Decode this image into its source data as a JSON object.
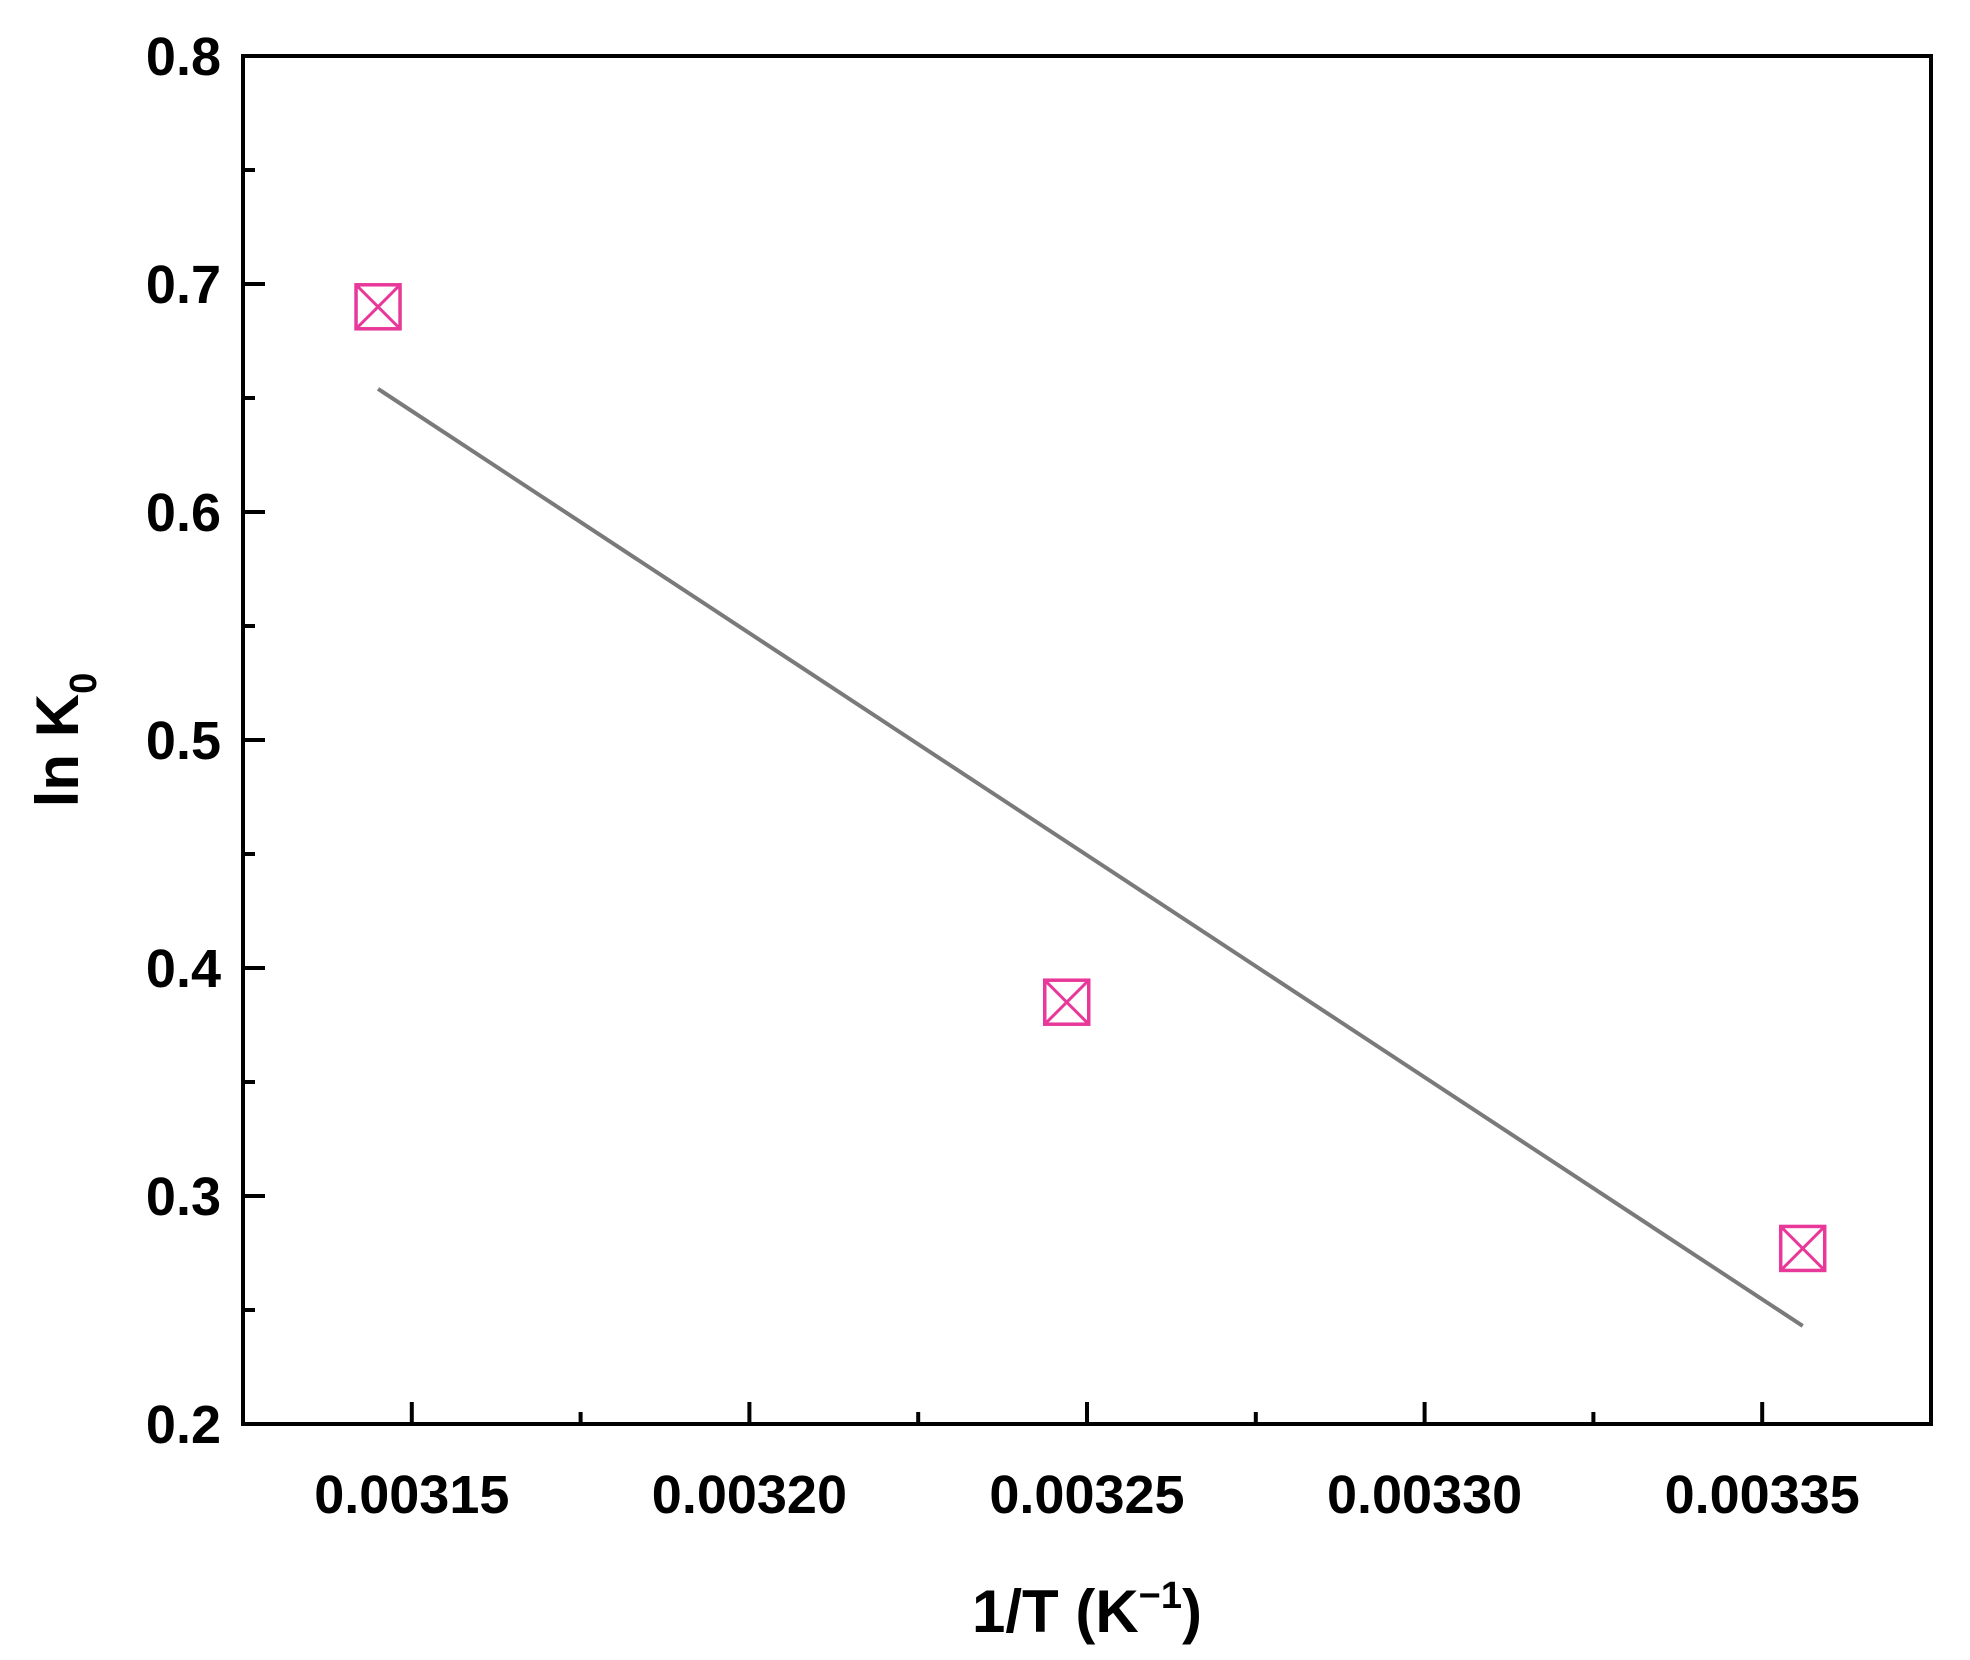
{
  "chart_data": {
    "type": "scatter",
    "xlabel": {
      "main": "1/T (K",
      "sup": "−1",
      "close": ")"
    },
    "ylabel": {
      "main": "ln K",
      "sub": "0"
    },
    "xlim": [
      0.003125,
      0.003375
    ],
    "ylim": [
      0.2,
      0.8
    ],
    "x_ticks": [
      0.00315,
      0.0032,
      0.00325,
      0.0033,
      0.00335
    ],
    "x_tick_labels": [
      "0.00315",
      "0.00320",
      "0.00325",
      "0.00330",
      "0.00335"
    ],
    "x_minor_ticks": [
      0.003175,
      0.003225,
      0.003275,
      0.003325
    ],
    "y_ticks": [
      0.2,
      0.3,
      0.4,
      0.5,
      0.6,
      0.7,
      0.8
    ],
    "y_tick_labels": [
      "0.2",
      "0.3",
      "0.4",
      "0.5",
      "0.6",
      "0.7",
      "0.8"
    ],
    "y_minor_ticks": [
      0.25,
      0.35,
      0.45,
      0.55,
      0.65,
      0.75
    ],
    "grid": false,
    "series": [
      {
        "kind": "points",
        "marker": "crossed-square",
        "color": "#E8399A",
        "x": [
          0.003145,
          0.003247,
          0.003356
        ],
        "y": [
          0.69,
          0.385,
          0.277
        ]
      },
      {
        "kind": "fit-line",
        "color": "#7A7A7A",
        "x": [
          0.003145,
          0.003356
        ],
        "y": [
          0.654,
          0.243
        ]
      }
    ]
  }
}
